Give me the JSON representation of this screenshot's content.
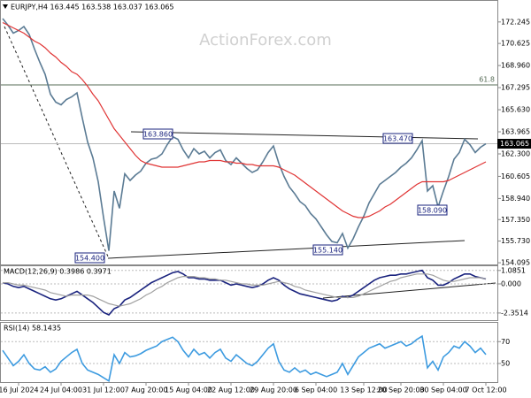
{
  "chart_data": [
    {
      "type": "line",
      "title": "EURJPY,H4 163.445 163.538 163.037 163.065",
      "watermark": "ActionForex.com",
      "ylim": [
        153.9,
        173.9
      ],
      "yticks": [
        172.245,
        170.625,
        {
          "value": 168.96,
          "label": "168.960"
        },
        167.295,
        {
          "value": 165.63,
          "label": "165.630"
        },
        163.965,
        {
          "value": 162.3,
          "label": "162.300"
        },
        160.605,
        {
          "value": 158.94,
          "label": "158.940"
        },
        {
          "value": 157.35,
          "label": "157.350"
        },
        {
          "value": 155.73,
          "label": "155.730"
        },
        154.095
      ],
      "last_price": {
        "value": 163.065,
        "label": "163.065"
      },
      "fib_level": {
        "value": 167.5,
        "label": "61.8"
      },
      "annotations": [
        "163.860",
        "163.470",
        "158.090",
        "155.140",
        "154.400"
      ],
      "series": [
        {
          "color": "#5b7b94",
          "values": [
            172.5,
            172.0,
            171.4,
            171.6,
            171.9,
            171.3,
            170.2,
            169.2,
            168.3,
            166.8,
            166.2,
            166.0,
            166.4,
            166.6,
            166.9,
            165.0,
            163.2,
            162.0,
            160.2,
            157.5,
            155.0,
            159.5,
            158.2,
            160.8,
            160.3,
            160.7,
            161.0,
            161.6,
            161.9,
            162.0,
            162.3,
            163.0,
            163.6,
            163.4,
            162.6,
            162.0,
            162.7,
            162.3,
            162.5,
            162.0,
            162.4,
            162.6,
            161.8,
            161.5,
            162.0,
            161.6,
            161.2,
            160.9,
            161.1,
            161.7,
            162.4,
            162.9,
            161.6,
            160.6,
            159.8,
            159.3,
            158.7,
            158.4,
            157.8,
            157.4,
            156.8,
            156.2,
            155.7,
            155.6,
            156.3,
            155.2,
            155.9,
            156.8,
            157.6,
            158.6,
            159.3,
            160.0,
            160.3,
            160.6,
            160.9,
            161.3,
            161.6,
            162.0,
            162.6,
            163.3,
            159.5,
            159.9,
            158.3,
            159.5,
            160.6,
            161.9,
            162.4,
            163.4,
            163.0,
            162.4,
            162.8,
            163.065
          ]
        },
        {
          "color": "#e03434",
          "values": [
            172.2,
            172.0,
            171.8,
            171.6,
            171.4,
            171.1,
            170.8,
            170.6,
            170.3,
            169.9,
            169.6,
            169.2,
            168.9,
            168.5,
            168.3,
            167.9,
            167.4,
            166.8,
            166.3,
            165.6,
            164.9,
            164.2,
            163.7,
            163.2,
            162.7,
            162.2,
            161.8,
            161.6,
            161.5,
            161.4,
            161.3,
            161.3,
            161.3,
            161.3,
            161.4,
            161.5,
            161.6,
            161.7,
            161.7,
            161.8,
            161.8,
            161.8,
            161.7,
            161.7,
            161.6,
            161.6,
            161.5,
            161.5,
            161.4,
            161.4,
            161.4,
            161.4,
            161.3,
            161.1,
            160.9,
            160.7,
            160.4,
            160.1,
            159.8,
            159.5,
            159.2,
            158.9,
            158.6,
            158.3,
            158.0,
            157.8,
            157.6,
            157.5,
            157.5,
            157.6,
            157.8,
            158.0,
            158.3,
            158.5,
            158.8,
            159.1,
            159.4,
            159.7,
            160.0,
            160.2,
            160.2,
            160.2,
            160.2,
            160.2,
            160.3,
            160.5,
            160.7,
            160.9,
            161.1,
            161.3,
            161.5,
            161.7
          ]
        }
      ]
    },
    {
      "type": "line",
      "title": "MACD(12,26,9) 0.3986 0.3971",
      "ylim": [
        -2.93,
        1.5
      ],
      "yticks": [
        1.0851,
        {
          "value": 0,
          "label": "0.000"
        },
        -2.3514
      ],
      "series": [
        {
          "color": "#1a237e",
          "values": [
            0.1,
            0.0,
            -0.2,
            -0.3,
            -0.2,
            -0.4,
            -0.6,
            -0.8,
            -1.0,
            -1.2,
            -1.3,
            -1.2,
            -1.0,
            -0.8,
            -0.6,
            -0.9,
            -1.2,
            -1.5,
            -1.9,
            -2.3,
            -2.5,
            -2.0,
            -1.8,
            -1.3,
            -1.1,
            -0.8,
            -0.5,
            -0.2,
            0.1,
            0.3,
            0.5,
            0.7,
            0.9,
            1.0,
            0.8,
            0.5,
            0.5,
            0.4,
            0.4,
            0.3,
            0.3,
            0.3,
            0.1,
            -0.1,
            0.0,
            -0.1,
            -0.2,
            -0.3,
            -0.2,
            0.0,
            0.3,
            0.5,
            0.3,
            -0.1,
            -0.4,
            -0.6,
            -0.8,
            -0.9,
            -1.0,
            -1.1,
            -1.2,
            -1.3,
            -1.4,
            -1.3,
            -1.0,
            -1.1,
            -0.9,
            -0.6,
            -0.3,
            0.0,
            0.3,
            0.5,
            0.6,
            0.7,
            0.7,
            0.8,
            0.8,
            0.9,
            1.0,
            1.1,
            0.5,
            0.3,
            -0.1,
            -0.1,
            0.1,
            0.4,
            0.6,
            0.8,
            0.8,
            0.6,
            0.5,
            0.3986
          ]
        },
        {
          "color": "#a0a0a0",
          "values": [
            0.1,
            0.1,
            0.0,
            -0.1,
            -0.1,
            -0.2,
            -0.3,
            -0.4,
            -0.5,
            -0.7,
            -0.8,
            -0.9,
            -1.0,
            -0.9,
            -0.9,
            -0.9,
            -0.9,
            -1.0,
            -1.2,
            -1.4,
            -1.6,
            -1.7,
            -1.8,
            -1.7,
            -1.6,
            -1.4,
            -1.2,
            -0.9,
            -0.7,
            -0.4,
            -0.2,
            0.1,
            0.3,
            0.5,
            0.6,
            0.6,
            0.6,
            0.5,
            0.5,
            0.4,
            0.4,
            0.3,
            0.3,
            0.2,
            0.1,
            0.0,
            0.0,
            -0.1,
            -0.1,
            -0.1,
            0.0,
            0.1,
            0.2,
            0.1,
            0.0,
            -0.2,
            -0.3,
            -0.5,
            -0.6,
            -0.7,
            -0.8,
            -0.9,
            -1.0,
            -1.1,
            -1.1,
            -1.1,
            -1.1,
            -1.0,
            -0.8,
            -0.6,
            -0.4,
            -0.2,
            0.0,
            0.2,
            0.3,
            0.5,
            0.6,
            0.7,
            0.8,
            0.8,
            0.8,
            0.7,
            0.5,
            0.3,
            0.2,
            0.2,
            0.3,
            0.4,
            0.5,
            0.5,
            0.5,
            0.3971
          ]
        }
      ]
    },
    {
      "type": "line",
      "title": "RSI(14) 58.1435",
      "ylim": [
        33,
        88
      ],
      "yticks": [
        70,
        50
      ],
      "categories": [
        null,
        null,
        null,
        "16 Jul 2024",
        null,
        null,
        null,
        null,
        null,
        null,
        null,
        "24 Jul 04:00",
        null,
        null,
        null,
        null,
        null,
        null,
        null,
        "31 Jul 12:00",
        null,
        null,
        null,
        null,
        null,
        null,
        null,
        "7 Aug 20:00",
        null,
        null,
        null,
        null,
        null,
        null,
        null,
        "15 Aug 04:00",
        null,
        null,
        null,
        null,
        null,
        null,
        null,
        "22 Aug 12:00",
        null,
        null,
        null,
        null,
        null,
        null,
        null,
        "29 Aug 20:00",
        null,
        null,
        null,
        null,
        null,
        null,
        null,
        "6 Sep 04:00",
        null,
        null,
        null,
        null,
        null,
        null,
        null,
        null,
        "13 Sep 12:00",
        null,
        null,
        null,
        null,
        null,
        null,
        "20 Sep 20:00",
        null,
        null,
        null,
        null,
        null,
        null,
        null,
        "30 Sep 04:00",
        null,
        null,
        null,
        null,
        null,
        null,
        null,
        "7 Oct 12:00"
      ],
      "series": [
        {
          "color": "#3d9be0",
          "values": [
            62,
            55,
            48,
            52,
            58,
            50,
            45,
            44,
            47,
            42,
            45,
            52,
            56,
            60,
            63,
            50,
            44,
            42,
            40,
            37,
            34,
            58,
            50,
            60,
            56,
            57,
            59,
            62,
            64,
            66,
            70,
            72,
            74,
            70,
            62,
            56,
            63,
            58,
            60,
            55,
            60,
            63,
            55,
            52,
            58,
            54,
            50,
            48,
            52,
            58,
            64,
            68,
            52,
            44,
            42,
            46,
            42,
            44,
            40,
            42,
            40,
            38,
            40,
            42,
            50,
            40,
            48,
            56,
            60,
            64,
            66,
            68,
            64,
            66,
            68,
            70,
            66,
            68,
            72,
            75,
            46,
            52,
            44,
            56,
            60,
            66,
            64,
            70,
            66,
            60,
            64,
            58.1435
          ]
        }
      ]
    }
  ]
}
